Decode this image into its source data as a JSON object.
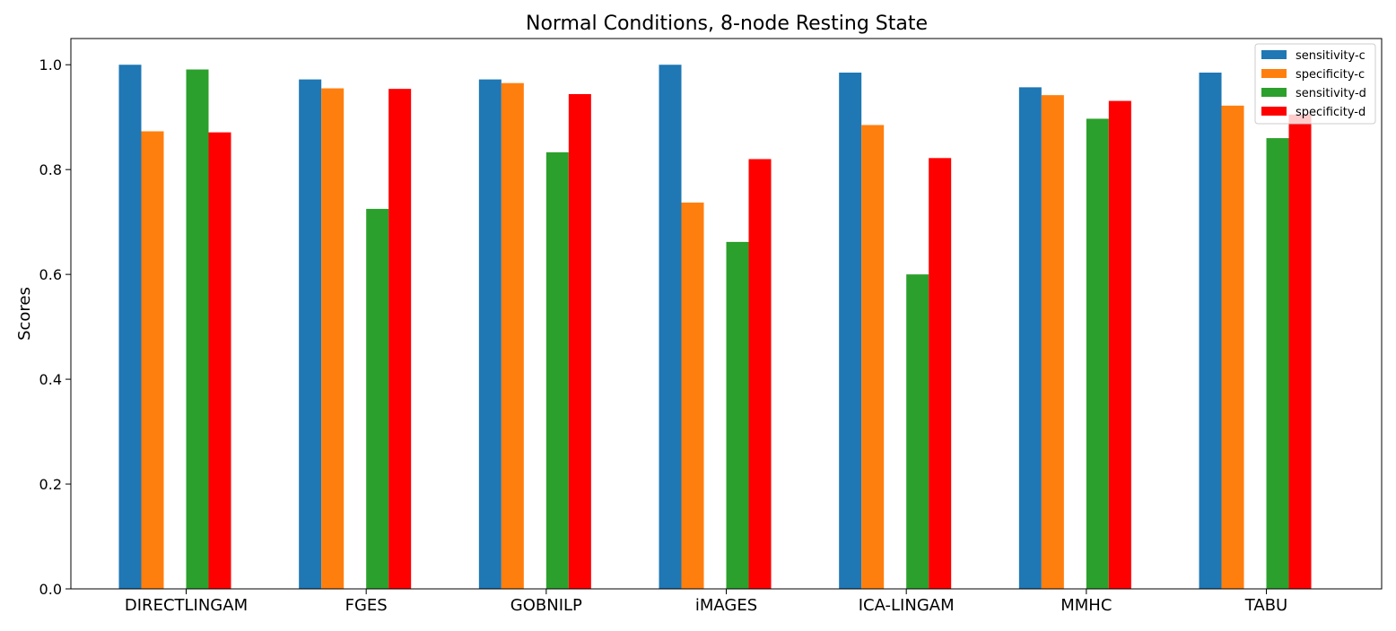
{
  "chart_data": {
    "type": "bar",
    "title": "Normal Conditions, 8-node Resting State",
    "xlabel": "",
    "ylabel": "Scores",
    "ylim": [
      0,
      1.05
    ],
    "yticks": [
      "0.0",
      "0.2",
      "0.4",
      "0.6",
      "0.8",
      "1.0"
    ],
    "grid": false,
    "legend_position": "top-right",
    "categories": [
      "DIRECTLINGAM",
      "FGES",
      "GOBNILP",
      "iMAGES",
      "ICA-LINGAM",
      "MMHC",
      "TABU"
    ],
    "bar_slots": [
      0,
      1,
      3,
      4
    ],
    "series": [
      {
        "name": "sensitivity-c",
        "color": "#1f77b4",
        "values": [
          1.0,
          0.972,
          0.972,
          1.0,
          0.985,
          0.957,
          0.985
        ]
      },
      {
        "name": "specificity-c",
        "color": "#ff7f0e",
        "values": [
          0.873,
          0.955,
          0.965,
          0.737,
          0.885,
          0.942,
          0.922
        ]
      },
      {
        "name": "sensitivity-d",
        "color": "#2ca02c",
        "values": [
          0.991,
          0.725,
          0.833,
          0.662,
          0.6,
          0.897,
          0.86
        ]
      },
      {
        "name": "specificity-d",
        "color": "#ff0000",
        "values": [
          0.871,
          0.954,
          0.944,
          0.82,
          0.822,
          0.931,
          0.905
        ]
      }
    ]
  }
}
